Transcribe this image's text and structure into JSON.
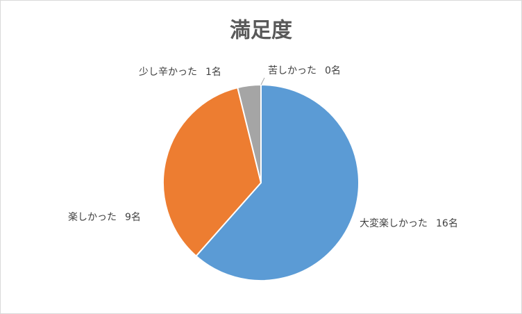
{
  "chart_data": {
    "type": "pie",
    "title": "満足度",
    "categories": [
      "大変楽しかった",
      "楽しかった",
      "少し辛かった",
      "苦しかった"
    ],
    "values": [
      16,
      9,
      1,
      0
    ],
    "value_labels": [
      "16名",
      "9名",
      "1名",
      "0名"
    ],
    "colors": [
      "#5b9bd5",
      "#ed7d31",
      "#a5a5a5",
      "#ffc000"
    ]
  }
}
